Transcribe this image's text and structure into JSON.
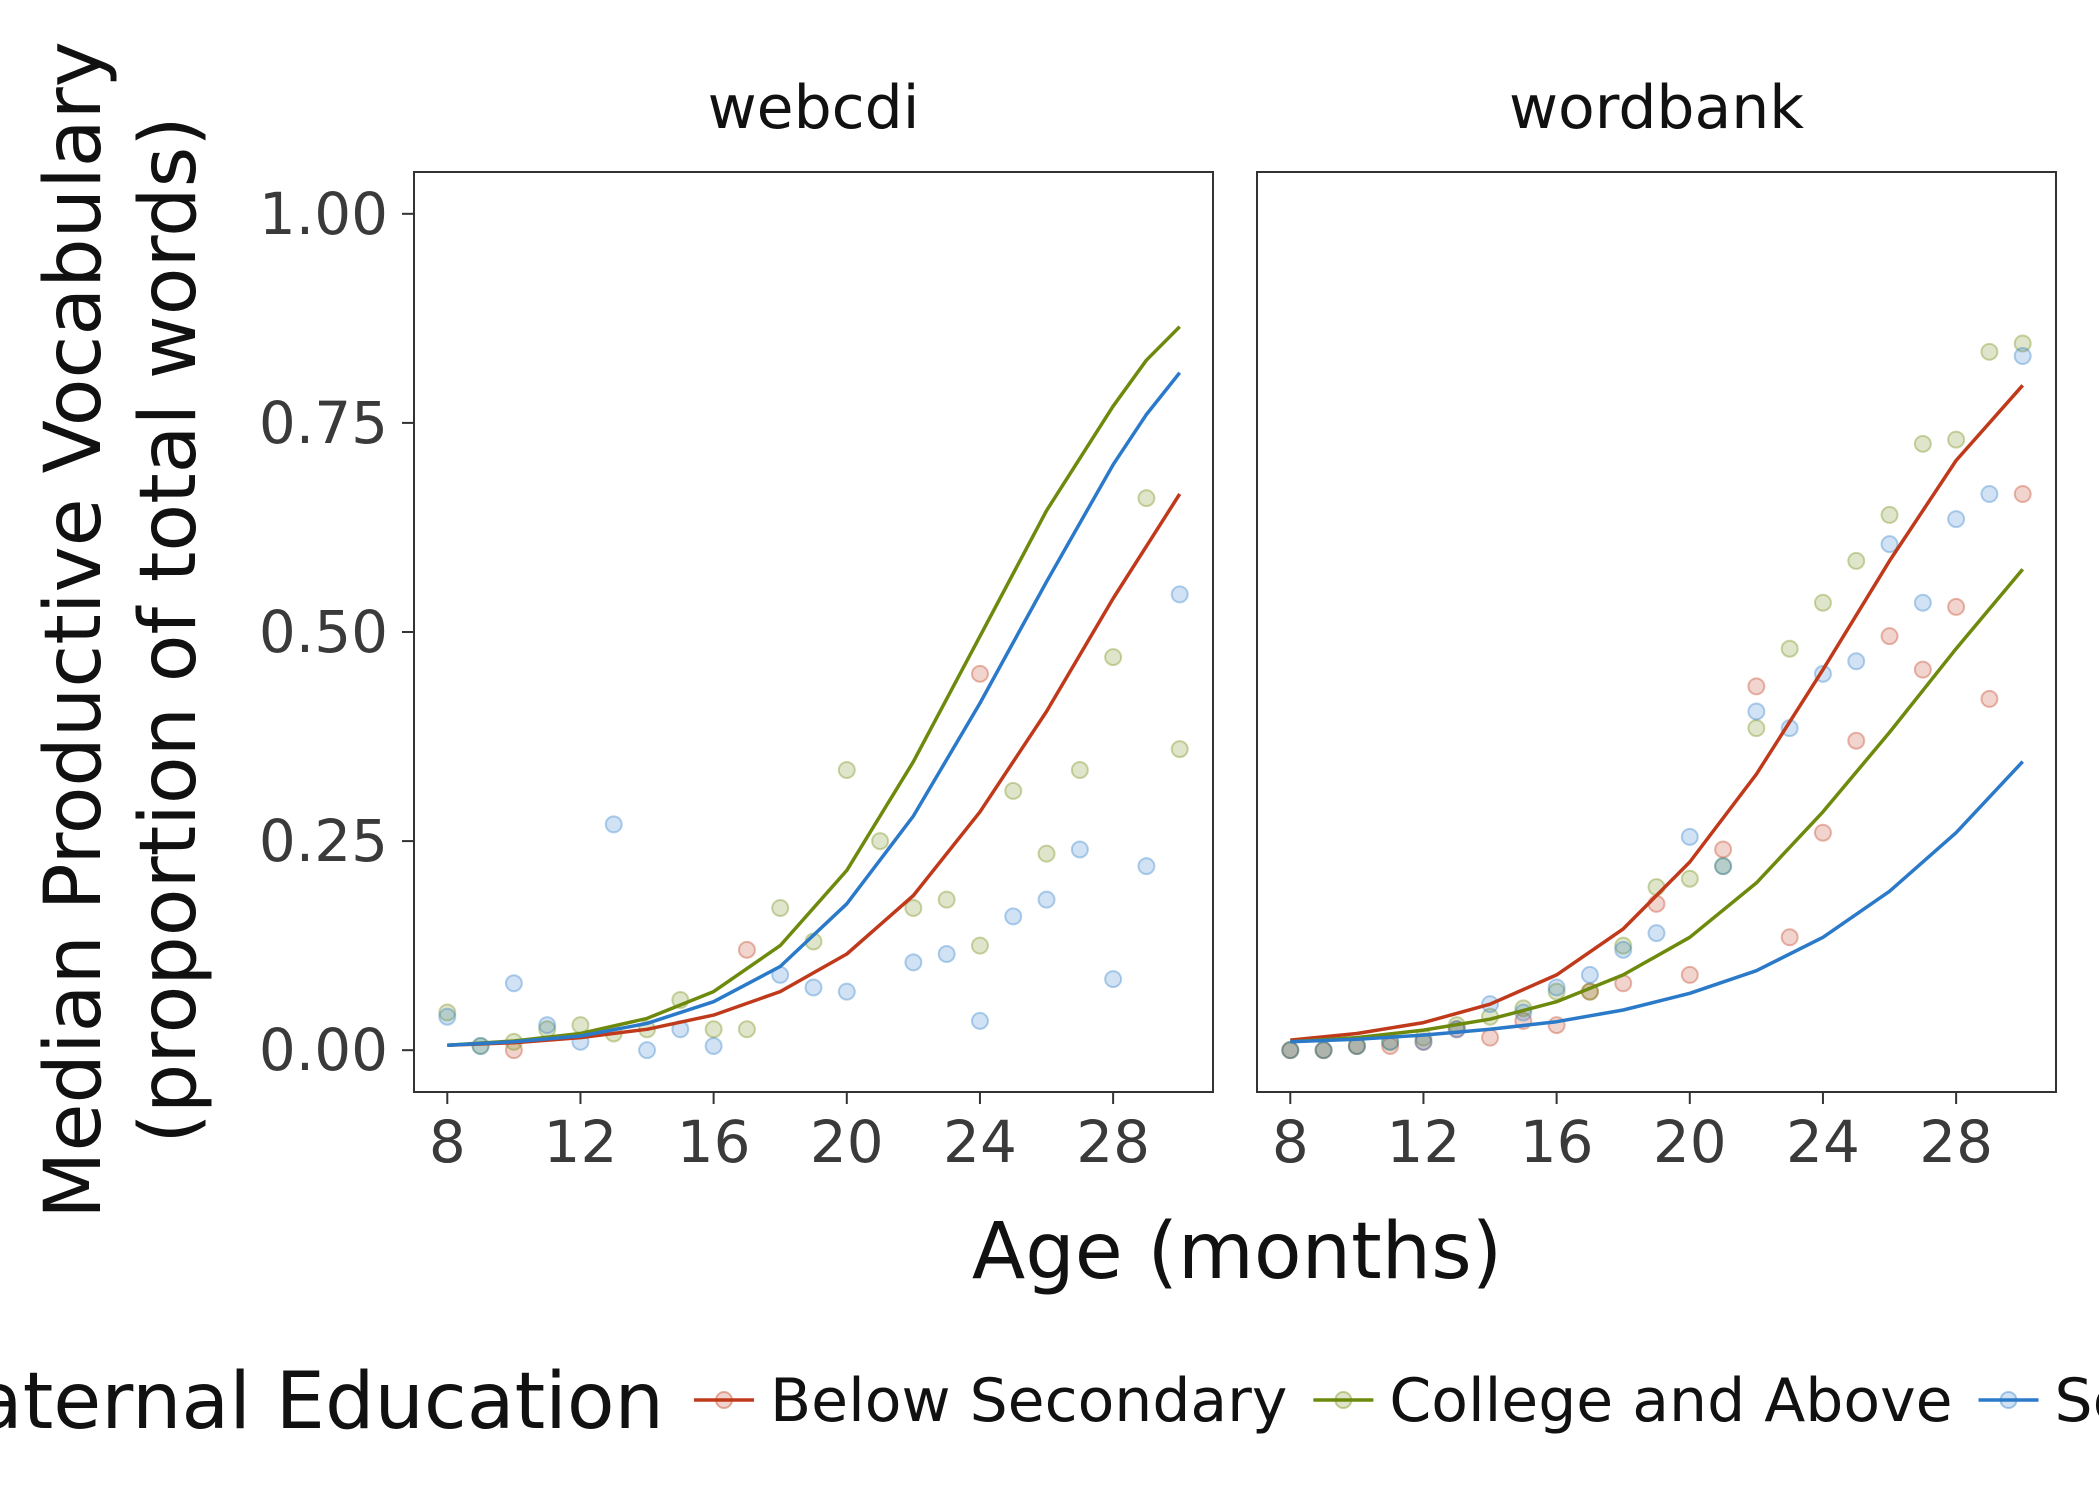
{
  "chart_data": {
    "type": "scatter",
    "xlabel": "Age (months)",
    "ylabel_lines": [
      "Median Productive Vocabulary",
      "(proportion of total words)"
    ],
    "xlim": [
      7,
      31
    ],
    "ylim": [
      -0.05,
      1.05
    ],
    "xticks": [
      8,
      12,
      16,
      20,
      24,
      28
    ],
    "yticks": [
      "0.00",
      "0.25",
      "0.50",
      "0.75",
      "1.00"
    ],
    "grid": false,
    "legend": {
      "title": "Maternal Education",
      "position": "bottom",
      "entries": [
        "Below Secondary",
        "College and Above",
        "Secondary"
      ]
    },
    "colors": {
      "Below Secondary": "#c0391b",
      "College and Above": "#6d8a0c",
      "Secondary": "#2a7ac9"
    },
    "facets": [
      {
        "title": "webcdi",
        "points": {
          "Below Secondary": [
            [
              10,
              0.0
            ],
            [
              17,
              0.12
            ],
            [
              24,
              0.45
            ]
          ],
          "College and Above": [
            [
              8,
              0.045
            ],
            [
              9,
              0.005
            ],
            [
              10,
              0.01
            ],
            [
              11,
              0.025
            ],
            [
              12,
              0.03
            ],
            [
              13,
              0.02
            ],
            [
              14,
              0.025
            ],
            [
              15,
              0.06
            ],
            [
              16,
              0.025
            ],
            [
              17,
              0.025
            ],
            [
              18,
              0.17
            ],
            [
              19,
              0.13
            ],
            [
              20,
              0.335
            ],
            [
              21,
              0.25
            ],
            [
              22,
              0.17
            ],
            [
              23,
              0.18
            ],
            [
              24,
              0.125
            ],
            [
              25,
              0.31
            ],
            [
              26,
              0.235
            ],
            [
              27,
              0.335
            ],
            [
              28,
              0.47
            ],
            [
              29,
              0.66
            ],
            [
              30,
              0.36
            ]
          ],
          "Secondary": [
            [
              8,
              0.04
            ],
            [
              9,
              0.005
            ],
            [
              10,
              0.08
            ],
            [
              11,
              0.03
            ],
            [
              12,
              0.01
            ],
            [
              13,
              0.27
            ],
            [
              14,
              0.0
            ],
            [
              15,
              0.025
            ],
            [
              16,
              0.005
            ],
            [
              18,
              0.09
            ],
            [
              19,
              0.075
            ],
            [
              20,
              0.07
            ],
            [
              22,
              0.105
            ],
            [
              23,
              0.115
            ],
            [
              24,
              0.035
            ],
            [
              25,
              0.16
            ],
            [
              26,
              0.18
            ],
            [
              27,
              0.24
            ],
            [
              28,
              0.085
            ],
            [
              29,
              0.22
            ],
            [
              30,
              0.545
            ]
          ]
        },
        "fits": {
          "Below Secondary": [
            [
              8,
              0.006
            ],
            [
              10,
              0.009
            ],
            [
              12,
              0.015
            ],
            [
              14,
              0.025
            ],
            [
              16,
              0.042
            ],
            [
              18,
              0.07
            ],
            [
              20,
              0.115
            ],
            [
              22,
              0.185
            ],
            [
              24,
              0.285
            ],
            [
              26,
              0.405
            ],
            [
              28,
              0.54
            ],
            [
              30,
              0.665
            ]
          ],
          "College and Above": [
            [
              8,
              0.006
            ],
            [
              10,
              0.011
            ],
            [
              12,
              0.02
            ],
            [
              14,
              0.038
            ],
            [
              16,
              0.07
            ],
            [
              18,
              0.125
            ],
            [
              20,
              0.215
            ],
            [
              22,
              0.345
            ],
            [
              24,
              0.495
            ],
            [
              26,
              0.645
            ],
            [
              28,
              0.77
            ],
            [
              29,
              0.825
            ],
            [
              30,
              0.865
            ]
          ],
          "Secondary": [
            [
              8,
              0.006
            ],
            [
              10,
              0.01
            ],
            [
              12,
              0.017
            ],
            [
              14,
              0.032
            ],
            [
              16,
              0.058
            ],
            [
              18,
              0.1
            ],
            [
              20,
              0.175
            ],
            [
              22,
              0.28
            ],
            [
              24,
              0.415
            ],
            [
              26,
              0.56
            ],
            [
              28,
              0.7
            ],
            [
              29,
              0.76
            ],
            [
              30,
              0.81
            ]
          ]
        }
      },
      {
        "title": "wordbank",
        "points": {
          "Below Secondary": [
            [
              8,
              0.0
            ],
            [
              9,
              0.0
            ],
            [
              10,
              0.005
            ],
            [
              11,
              0.005
            ],
            [
              12,
              0.01
            ],
            [
              13,
              0.025
            ],
            [
              14,
              0.015
            ],
            [
              15,
              0.035
            ],
            [
              16,
              0.03
            ],
            [
              17,
              0.07
            ],
            [
              18,
              0.08
            ],
            [
              19,
              0.175
            ],
            [
              20,
              0.09
            ],
            [
              21,
              0.24
            ],
            [
              22,
              0.435
            ],
            [
              23,
              0.135
            ],
            [
              24,
              0.26
            ],
            [
              25,
              0.37
            ],
            [
              26,
              0.495
            ],
            [
              27,
              0.455
            ],
            [
              28,
              0.53
            ],
            [
              29,
              0.42
            ],
            [
              30,
              0.665
            ]
          ],
          "College and Above": [
            [
              8,
              0.0
            ],
            [
              9,
              0.0
            ],
            [
              10,
              0.005
            ],
            [
              11,
              0.01
            ],
            [
              12,
              0.015
            ],
            [
              13,
              0.03
            ],
            [
              14,
              0.04
            ],
            [
              15,
              0.05
            ],
            [
              16,
              0.07
            ],
            [
              17,
              0.07
            ],
            [
              18,
              0.125
            ],
            [
              19,
              0.195
            ],
            [
              20,
              0.205
            ],
            [
              21,
              0.22
            ],
            [
              22,
              0.385
            ],
            [
              23,
              0.48
            ],
            [
              24,
              0.535
            ],
            [
              25,
              0.585
            ],
            [
              26,
              0.64
            ],
            [
              27,
              0.725
            ],
            [
              28,
              0.73
            ],
            [
              29,
              0.835
            ],
            [
              30,
              0.845
            ]
          ],
          "Secondary": [
            [
              8,
              0.0
            ],
            [
              9,
              0.0
            ],
            [
              10,
              0.005
            ],
            [
              11,
              0.01
            ],
            [
              12,
              0.01
            ],
            [
              13,
              0.025
            ],
            [
              14,
              0.055
            ],
            [
              15,
              0.045
            ],
            [
              16,
              0.075
            ],
            [
              17,
              0.09
            ],
            [
              18,
              0.12
            ],
            [
              19,
              0.14
            ],
            [
              20,
              0.255
            ],
            [
              21,
              0.22
            ],
            [
              22,
              0.405
            ],
            [
              23,
              0.385
            ],
            [
              24,
              0.45
            ],
            [
              25,
              0.465
            ],
            [
              26,
              0.605
            ],
            [
              27,
              0.535
            ],
            [
              28,
              0.635
            ],
            [
              29,
              0.665
            ],
            [
              30,
              0.83
            ]
          ]
        },
        "fits": {
          "Below Secondary": [
            [
              8,
              0.012
            ],
            [
              10,
              0.02
            ],
            [
              12,
              0.033
            ],
            [
              14,
              0.055
            ],
            [
              16,
              0.09
            ],
            [
              18,
              0.145
            ],
            [
              20,
              0.225
            ],
            [
              22,
              0.33
            ],
            [
              24,
              0.455
            ],
            [
              26,
              0.585
            ],
            [
              28,
              0.705
            ],
            [
              30,
              0.795
            ]
          ],
          "College and Above": [
            [
              8,
              0.01
            ],
            [
              10,
              0.015
            ],
            [
              12,
              0.024
            ],
            [
              14,
              0.037
            ],
            [
              16,
              0.058
            ],
            [
              18,
              0.09
            ],
            [
              20,
              0.135
            ],
            [
              22,
              0.2
            ],
            [
              24,
              0.285
            ],
            [
              26,
              0.38
            ],
            [
              28,
              0.48
            ],
            [
              30,
              0.575
            ]
          ],
          "Secondary": [
            [
              8,
              0.01
            ],
            [
              10,
              0.013
            ],
            [
              12,
              0.018
            ],
            [
              14,
              0.025
            ],
            [
              16,
              0.034
            ],
            [
              18,
              0.048
            ],
            [
              20,
              0.068
            ],
            [
              22,
              0.095
            ],
            [
              24,
              0.135
            ],
            [
              26,
              0.19
            ],
            [
              28,
              0.26
            ],
            [
              30,
              0.345
            ]
          ]
        }
      }
    ]
  }
}
